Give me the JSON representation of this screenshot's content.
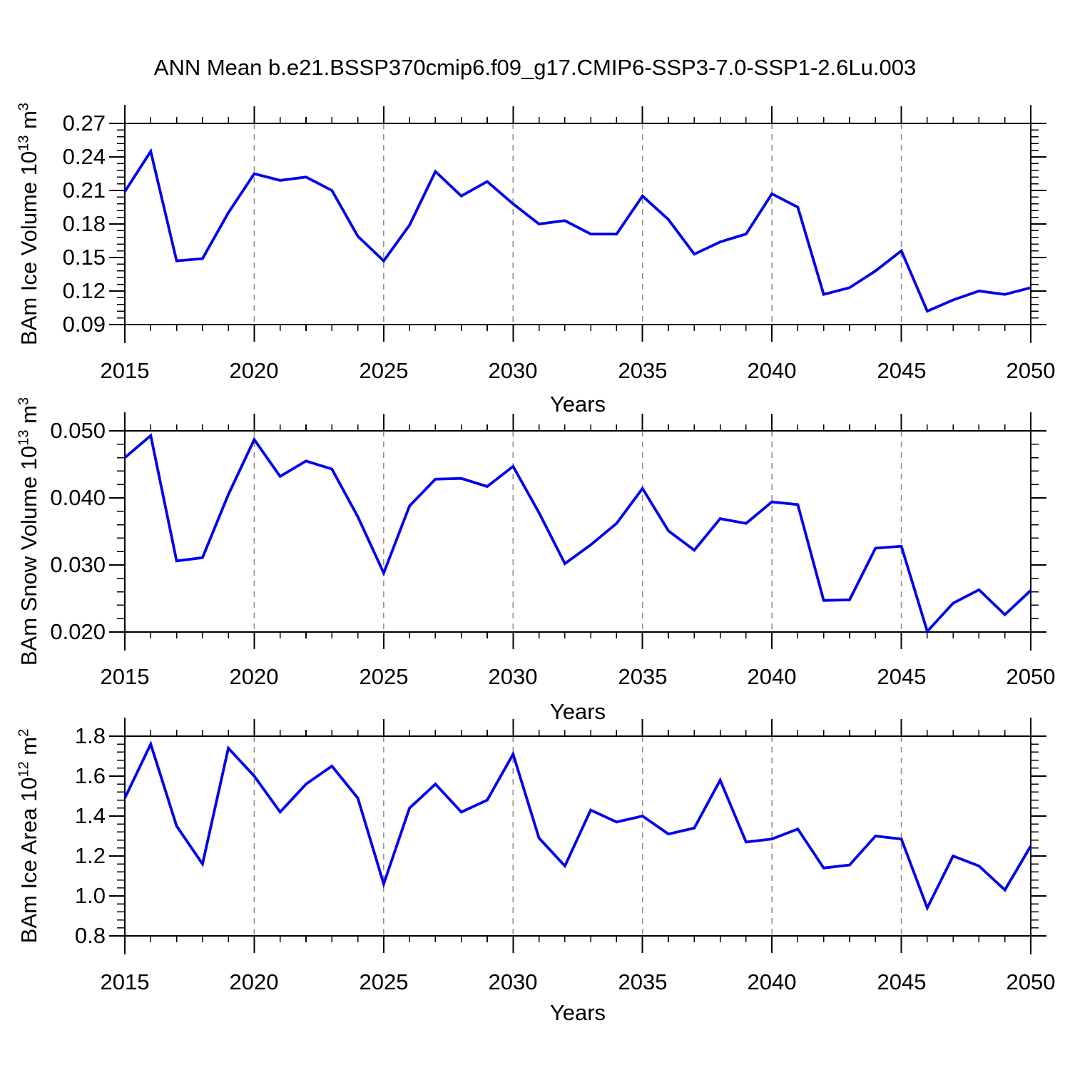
{
  "title": "ANN Mean b.e21.BSSP370cmip6.f09_g17.CMIP6-SSP3-7.0-SSP1-2.6Lu.003",
  "colors": {
    "line": "#0000ee",
    "grid": "#8f8f8f",
    "frame": "#000000",
    "background": "#ffffff"
  },
  "chart_data": [
    {
      "type": "line",
      "title": "",
      "xlabel": "Years",
      "ylabel": {
        "prefix": "BAm Ice Volume 10",
        "exp": "13",
        "unit": " m",
        "unit_exp": "3"
      },
      "xlim": [
        2015,
        2050
      ],
      "xtick_step": 5,
      "xtick_minor_step": 1,
      "xticklabels": [
        "2015",
        "2020",
        "2025",
        "2030",
        "2035",
        "2040",
        "2045",
        "2050"
      ],
      "ylim": [
        0.09,
        0.27
      ],
      "ytick_step": 0.03,
      "ytick_minor_step": 0.006,
      "ytick_decimals": 2,
      "yticklabels": [
        "0.09",
        "0.12",
        "0.15",
        "0.18",
        "0.21",
        "0.24",
        "0.27"
      ],
      "grid": "vertical-dashed",
      "legend": "none",
      "x": [
        2015,
        2016,
        2017,
        2018,
        2019,
        2020,
        2021,
        2022,
        2023,
        2024,
        2025,
        2026,
        2027,
        2028,
        2029,
        2030,
        2031,
        2032,
        2033,
        2034,
        2035,
        2036,
        2037,
        2038,
        2039,
        2040,
        2041,
        2042,
        2043,
        2044,
        2045,
        2046,
        2047,
        2048,
        2049,
        2050
      ],
      "values": [
        0.209,
        0.245,
        0.147,
        0.149,
        0.19,
        0.225,
        0.219,
        0.222,
        0.21,
        0.169,
        0.147,
        0.179,
        0.227,
        0.205,
        0.218,
        0.198,
        0.18,
        0.183,
        0.171,
        0.171,
        0.205,
        0.184,
        0.153,
        0.164,
        0.171,
        0.207,
        0.195,
        0.117,
        0.123,
        0.138,
        0.156,
        0.102,
        0.112,
        0.12,
        0.117,
        0.123
      ]
    },
    {
      "type": "line",
      "title": "",
      "xlabel": "Years",
      "ylabel": {
        "prefix": "BAm Snow Volume 10",
        "exp": "13",
        "unit": " m",
        "unit_exp": "3"
      },
      "xlim": [
        2015,
        2050
      ],
      "xtick_step": 5,
      "xtick_minor_step": 1,
      "xticklabels": [
        "2015",
        "2020",
        "2025",
        "2030",
        "2035",
        "2040",
        "2045",
        "2050"
      ],
      "ylim": [
        0.02,
        0.05
      ],
      "ytick_step": 0.01,
      "ytick_minor_step": 0.002,
      "ytick_decimals": 3,
      "yticklabels": [
        "0.020",
        "0.030",
        "0.040",
        "0.050"
      ],
      "grid": "vertical-dashed",
      "legend": "none",
      "x": [
        2015,
        2016,
        2017,
        2018,
        2019,
        2020,
        2021,
        2022,
        2023,
        2024,
        2025,
        2026,
        2027,
        2028,
        2029,
        2030,
        2031,
        2032,
        2033,
        2034,
        2035,
        2036,
        2037,
        2038,
        2039,
        2040,
        2041,
        2042,
        2043,
        2044,
        2045,
        2046,
        2047,
        2048,
        2049,
        2050
      ],
      "values": [
        0.046,
        0.0493,
        0.0306,
        0.0311,
        0.0405,
        0.0487,
        0.0432,
        0.0455,
        0.0443,
        0.0372,
        0.0288,
        0.0388,
        0.0428,
        0.0429,
        0.0417,
        0.0447,
        0.0378,
        0.0302,
        0.033,
        0.0362,
        0.0414,
        0.0351,
        0.0322,
        0.0369,
        0.0362,
        0.0394,
        0.039,
        0.0247,
        0.0248,
        0.0325,
        0.0328,
        0.0201,
        0.0243,
        0.0263,
        0.0226,
        0.0262
      ]
    },
    {
      "type": "line",
      "title": "",
      "xlabel": "Years",
      "ylabel": {
        "prefix": "BAm Ice Area 10",
        "exp": "12",
        "unit": " m",
        "unit_exp": "2"
      },
      "xlim": [
        2015,
        2050
      ],
      "xtick_step": 5,
      "xtick_minor_step": 1,
      "xticklabels": [
        "2015",
        "2020",
        "2025",
        "2030",
        "2035",
        "2040",
        "2045",
        "2050"
      ],
      "ylim": [
        0.8,
        1.8
      ],
      "ytick_step": 0.2,
      "ytick_minor_step": 0.04,
      "ytick_decimals": 1,
      "yticklabels": [
        "0.8",
        "1.0",
        "1.2",
        "1.4",
        "1.6",
        "1.8"
      ],
      "grid": "vertical-dashed",
      "legend": "none",
      "x": [
        2015,
        2016,
        2017,
        2018,
        2019,
        2020,
        2021,
        2022,
        2023,
        2024,
        2025,
        2026,
        2027,
        2028,
        2029,
        2030,
        2031,
        2032,
        2033,
        2034,
        2035,
        2036,
        2037,
        2038,
        2039,
        2040,
        2041,
        2042,
        2043,
        2044,
        2045,
        2046,
        2047,
        2048,
        2049,
        2050
      ],
      "values": [
        1.49,
        1.76,
        1.35,
        1.16,
        1.74,
        1.6,
        1.42,
        1.56,
        1.65,
        1.49,
        1.06,
        1.44,
        1.56,
        1.42,
        1.48,
        1.71,
        1.29,
        1.15,
        1.43,
        1.37,
        1.4,
        1.31,
        1.34,
        1.58,
        1.27,
        1.285,
        1.335,
        1.14,
        1.155,
        1.3,
        1.285,
        0.94,
        1.2,
        1.15,
        1.03,
        1.25
      ]
    }
  ]
}
